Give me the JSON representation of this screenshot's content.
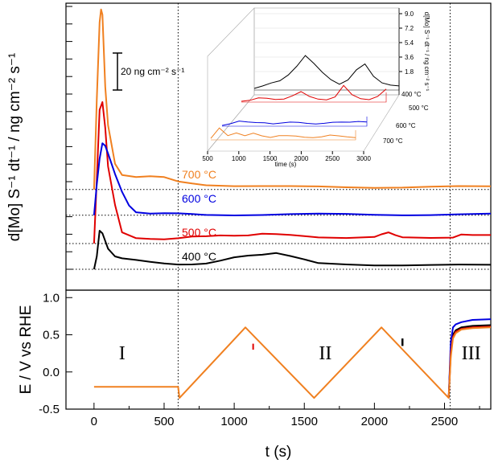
{
  "chart_data": [
    {
      "type": "line",
      "panel": "top",
      "ylabel": "d[Mo] S⁻¹ dt⁻¹ / ng cm⁻² s⁻¹",
      "scale_bar_label": "20  ng cm⁻² s⁻¹",
      "scale_bar_value": 20,
      "xlim": [
        -200,
        2830
      ],
      "series": [
        {
          "name": "400 °C",
          "color": "#000000",
          "baseline": 0,
          "x": [
            0,
            20,
            40,
            60,
            80,
            100,
            150,
            200,
            300,
            400,
            500,
            600,
            700,
            800,
            900,
            1000,
            1100,
            1200,
            1300,
            1400,
            1500,
            1600,
            1800,
            2000,
            2200,
            2400,
            2600,
            2830
          ],
          "y": [
            0,
            5,
            15,
            14,
            11,
            8,
            5,
            4,
            3.3,
            2.8,
            2.5,
            2.2,
            2,
            2,
            3,
            4.5,
            5.5,
            6,
            6.5,
            5,
            3.5,
            2.2,
            2,
            1.8,
            1.7,
            1.6,
            1.5,
            1.5
          ]
        },
        {
          "name": "500 °C",
          "color": "#e00000",
          "baseline": 10,
          "x": [
            0,
            20,
            40,
            60,
            80,
            100,
            150,
            200,
            300,
            400,
            500,
            600,
            700,
            800,
            900,
            1000,
            1100,
            1200,
            1300,
            1400,
            1500,
            1600,
            1800,
            2000,
            2050,
            2100,
            2150,
            2200,
            2400,
            2560,
            2620,
            2700,
            2830
          ],
          "y": [
            0,
            25,
            52,
            55,
            45,
            30,
            15,
            4,
            2,
            2,
            2,
            2.2,
            2.5,
            2.5,
            3,
            3.2,
            3.5,
            4,
            3.5,
            3,
            2.7,
            2.5,
            2.5,
            2.8,
            3.5,
            4,
            3,
            2.5,
            2.5,
            2.6,
            3.5,
            3,
            3
          ]
        },
        {
          "name": "600 °C",
          "color": "#0000e0",
          "baseline": 21,
          "x": [
            0,
            20,
            40,
            60,
            80,
            100,
            150,
            200,
            250,
            300,
            400,
            500,
            600,
            700,
            800,
            1000,
            1200,
            1400,
            1600,
            1800,
            2000,
            2200,
            2400,
            2600,
            2830
          ],
          "y": [
            0,
            12,
            22,
            28,
            27,
            24,
            16,
            9,
            4,
            1.5,
            0.8,
            0.6,
            0.4,
            0.3,
            0.3,
            0.3,
            0.3,
            0.3,
            0.3,
            0.3,
            0.3,
            0.3,
            0.3,
            0.3,
            0.3
          ]
        },
        {
          "name": "700 °C",
          "color": "#f08020",
          "baseline": 31,
          "x": [
            0,
            20,
            40,
            50,
            60,
            80,
            100,
            150,
            200,
            300,
            400,
            500,
            600,
            700,
            800,
            1000,
            1200,
            1400,
            1600,
            1800,
            2000,
            2200,
            2400,
            2600,
            2830
          ],
          "y": [
            0,
            35,
            65,
            70,
            68,
            40,
            25,
            10,
            6,
            5,
            5,
            4.5,
            3,
            2.5,
            2,
            1.5,
            1.2,
            1,
            1,
            1,
            1,
            1,
            1,
            1,
            1
          ]
        }
      ],
      "vlines": [
        600,
        2540
      ],
      "inset": {
        "type": "line-3d",
        "xlabel": "time (s)",
        "x_ticks": [
          "500",
          "1000",
          "1500",
          "2000",
          "2500",
          "3000"
        ],
        "z_label": "d[Mo] S⁻¹ dt⁻¹ / ng cm⁻² s⁻¹",
        "z_ticks": [
          "9.0",
          "7.2",
          "5.4",
          "3.6",
          "1.8"
        ],
        "series_labels": [
          "400 °C",
          "500 °C",
          "600 °C",
          "700 °C"
        ],
        "series_colors": [
          "#000000",
          "#e00000",
          "#0000e0",
          "#f08020"
        ]
      }
    },
    {
      "type": "line",
      "panel": "bottom",
      "xlabel": "t (s)",
      "ylabel": "E / V vs RHE",
      "xlim": [
        -200,
        2830
      ],
      "ylim": [
        -0.5,
        1.1
      ],
      "x_ticks": [
        0,
        500,
        1000,
        1500,
        2000,
        2500
      ],
      "y_ticks": [
        -0.5,
        0.0,
        0.5,
        1.0
      ],
      "y_tick_labels": [
        "-0.5",
        "0.0",
        "0.5",
        "1.0"
      ],
      "regions": [
        "I",
        "II",
        "III"
      ],
      "region_x": [
        200,
        1650,
        2690
      ],
      "series": [
        {
          "name": "potential",
          "color": "#f08020",
          "x": [
            0,
            600,
            610,
            1080,
            1570,
            2050,
            2530,
            2545,
            2560,
            2580,
            2620,
            2700,
            2830
          ],
          "y": [
            -0.2,
            -0.2,
            -0.35,
            0.6,
            -0.35,
            0.6,
            -0.35,
            0.2,
            0.45,
            0.52,
            0.57,
            0.59,
            0.6
          ]
        },
        {
          "name": "700 °C",
          "color": "#e00000",
          "x": [
            2530,
            2545,
            2560,
            2580,
            2620,
            2700,
            2830
          ],
          "y": [
            -0.35,
            0.25,
            0.47,
            0.54,
            0.58,
            0.6,
            0.61
          ]
        },
        {
          "name": "600 °C",
          "color": "#0000e0",
          "x": [
            2530,
            2545,
            2560,
            2580,
            2620,
            2700,
            2830
          ],
          "y": [
            -0.35,
            0.4,
            0.6,
            0.64,
            0.67,
            0.7,
            0.71
          ]
        },
        {
          "name": "400 °C",
          "color": "#000000",
          "x": [
            2530,
            2545,
            2560,
            2580,
            2620,
            2700,
            2830
          ],
          "y": [
            -0.35,
            0.3,
            0.5,
            0.56,
            0.6,
            0.62,
            0.63
          ]
        }
      ],
      "vlines": [
        600,
        2540
      ]
    }
  ]
}
